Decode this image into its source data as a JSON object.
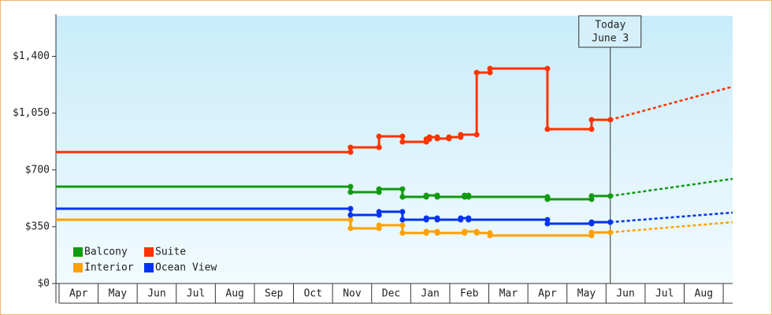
{
  "chart_data": {
    "type": "line",
    "categories": [
      "Apr",
      "May",
      "Jun",
      "Jul",
      "Aug",
      "Sep",
      "Oct",
      "Nov",
      "Dec",
      "Jan",
      "Feb",
      "Mar",
      "Apr",
      "May",
      "Jun",
      "Jul",
      "Aug"
    ],
    "xlim": [
      -0.08,
      17.24
    ],
    "ylim": [
      0,
      1650
    ],
    "yticks": [
      {
        "value": 0,
        "label": "$0"
      },
      {
        "value": 350,
        "label": "$350"
      },
      {
        "value": 700,
        "label": "$700"
      },
      {
        "value": 1050,
        "label": "$1,050"
      },
      {
        "value": 1400,
        "label": "$1,400"
      }
    ],
    "today": {
      "x": 14.11,
      "label": [
        "Today",
        "June 3"
      ]
    },
    "series": [
      {
        "name": "Balcony",
        "color": "#119911",
        "x": [
          -0.08,
          7.46,
          7.46,
          8.19,
          8.19,
          8.79,
          8.79,
          9.4,
          9.4,
          9.68,
          9.68,
          10.38,
          10.38,
          10.48,
          10.48,
          12.5,
          12.5,
          13.63,
          13.63,
          14.11
        ],
        "values": [
          597,
          597,
          563,
          563,
          582,
          582,
          534,
          534,
          543,
          543,
          534,
          534,
          543,
          543,
          534,
          534,
          519,
          519,
          539,
          539
        ],
        "projection": {
          "x": [
            14.11,
            17.24
          ],
          "values": [
            539,
            645
          ]
        }
      },
      {
        "name": "Suite",
        "color": "#ff3300",
        "x": [
          -0.08,
          7.46,
          7.46,
          8.19,
          8.19,
          8.79,
          8.79,
          9.4,
          9.4,
          9.48,
          9.48,
          9.68,
          9.68,
          9.98,
          9.98,
          10.28,
          10.28,
          10.69,
          10.69,
          11.03,
          11.03,
          12.5,
          12.5,
          13.63,
          13.63,
          14.11
        ],
        "values": [
          810,
          810,
          839,
          839,
          907,
          907,
          873,
          873,
          890,
          890,
          902,
          902,
          893,
          893,
          902,
          902,
          917,
          917,
          1300,
          1300,
          1325,
          1325,
          951,
          951,
          1009,
          1009
        ],
        "projection": {
          "x": [
            14.11,
            17.24
          ],
          "values": [
            1009,
            1213
          ]
        }
      },
      {
        "name": "Interior",
        "color": "#ffa000",
        "x": [
          -0.08,
          7.46,
          7.46,
          8.19,
          8.19,
          8.79,
          8.79,
          9.4,
          9.4,
          9.68,
          9.68,
          10.38,
          10.38,
          10.69,
          10.69,
          11.03,
          11.03,
          13.63,
          13.63,
          14.11
        ],
        "values": [
          393,
          393,
          340,
          340,
          359,
          359,
          311,
          311,
          320,
          320,
          311,
          311,
          320,
          320,
          311,
          311,
          296,
          296,
          315,
          315
        ],
        "projection": {
          "x": [
            14.11,
            17.24
          ],
          "values": [
            315,
            378
          ]
        }
      },
      {
        "name": "Ocean View",
        "color": "#0033ee",
        "x": [
          -0.08,
          7.46,
          7.46,
          8.19,
          8.19,
          8.79,
          8.79,
          9.4,
          9.4,
          9.68,
          9.68,
          10.28,
          10.28,
          10.48,
          10.48,
          12.5,
          12.5,
          13.63,
          13.63,
          14.11
        ],
        "values": [
          461,
          461,
          422,
          422,
          442,
          442,
          393,
          393,
          403,
          403,
          393,
          393,
          403,
          403,
          393,
          393,
          369,
          369,
          378,
          378
        ],
        "projection": {
          "x": [
            14.11,
            17.24
          ],
          "values": [
            378,
            437
          ]
        }
      }
    ]
  }
}
